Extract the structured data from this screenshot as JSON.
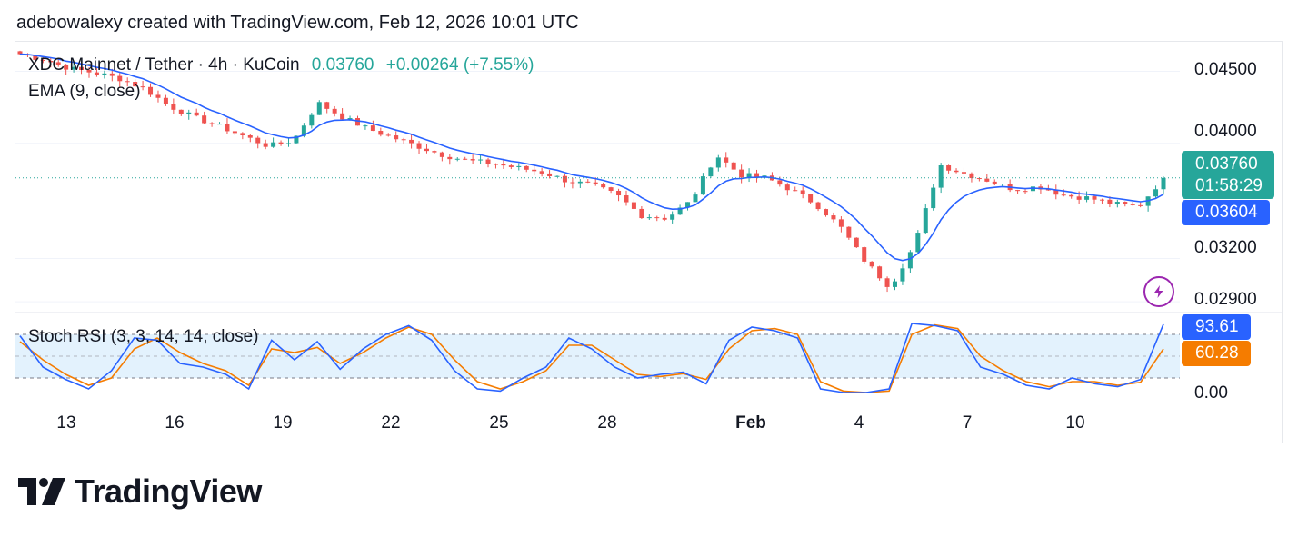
{
  "header": {
    "attribution": "adebowalexy created with TradingView.com, Feb 12, 2026 10:01 UTC"
  },
  "legend": {
    "symbol": "XDC Mainnet / Tether · 4h · KuCoin",
    "last": "0.03760",
    "change": "+0.00264 (+7.55%)",
    "ema": "EMA (9, close)",
    "stoch": "Stoch RSI (3, 3, 14, 14, close)"
  },
  "price_axis": {
    "ticks": [
      "0.04500",
      "0.04000",
      "0.03200",
      "0.02900"
    ]
  },
  "tags": {
    "last_price": "0.03760",
    "countdown": "01:58:29",
    "ema_value": "0.03604",
    "stoch_k": "93.61",
    "stoch_d": "60.28",
    "stoch_zero": "0.00"
  },
  "x_axis": {
    "labels": [
      "13",
      "16",
      "19",
      "22",
      "25",
      "28",
      "Feb",
      "4",
      "7",
      "10"
    ]
  },
  "colors": {
    "up": "#26a69a",
    "down": "#ef5350",
    "ema": "#2962ff",
    "k_line": "#2962ff",
    "d_line": "#f57c00",
    "band": "#e3f2fd"
  },
  "icons": {
    "indicator": "lightning-icon",
    "brand": "tradingview-logo-icon"
  },
  "brand": {
    "name": "TradingView"
  },
  "chart_data": [
    {
      "type": "candlestick",
      "title": "XDC Mainnet / Tether · 4h · KuCoin",
      "x_labels": [
        "13",
        "16",
        "19",
        "22",
        "25",
        "28",
        "Feb",
        "4",
        "7",
        "10"
      ],
      "close_path": [
        0.0462,
        0.0458,
        0.0452,
        0.0449,
        0.0445,
        0.0438,
        0.0426,
        0.0418,
        0.0412,
        0.0405,
        0.0398,
        0.0402,
        0.0428,
        0.0418,
        0.041,
        0.0404,
        0.0398,
        0.0392,
        0.0388,
        0.0386,
        0.0383,
        0.038,
        0.0374,
        0.0371,
        0.0364,
        0.035,
        0.0348,
        0.036,
        0.0392,
        0.0378,
        0.0376,
        0.0368,
        0.0358,
        0.0342,
        0.0318,
        0.03,
        0.033,
        0.0385,
        0.0379,
        0.0374,
        0.0368,
        0.037,
        0.0364,
        0.0362,
        0.0358,
        0.0356,
        0.0376
      ],
      "ema_last": 0.03604,
      "last": 0.0376,
      "ylim": [
        0.0285,
        0.0468
      ]
    },
    {
      "type": "line",
      "title": "Stoch RSI (3, 3, 14, 14, close)",
      "ylim": [
        0,
        100
      ],
      "band": [
        20,
        80
      ],
      "series": [
        {
          "name": "K",
          "values": [
            78,
            35,
            18,
            5,
            30,
            75,
            72,
            40,
            35,
            25,
            5,
            72,
            45,
            70,
            32,
            60,
            80,
            92,
            72,
            30,
            5,
            2,
            20,
            35,
            75,
            60,
            35,
            20,
            25,
            28,
            12,
            72,
            90,
            85,
            75,
            5,
            0,
            0,
            5,
            95,
            92,
            85,
            35,
            25,
            10,
            5,
            20,
            12,
            8,
            18,
            94
          ]
        },
        {
          "name": "D",
          "values": [
            70,
            45,
            25,
            10,
            20,
            60,
            75,
            55,
            40,
            30,
            10,
            60,
            55,
            62,
            40,
            55,
            75,
            90,
            80,
            45,
            15,
            5,
            15,
            30,
            65,
            65,
            45,
            25,
            22,
            26,
            18,
            60,
            85,
            88,
            80,
            15,
            2,
            0,
            2,
            80,
            93,
            88,
            50,
            30,
            15,
            8,
            15,
            15,
            10,
            14,
            60
          ]
        }
      ]
    }
  ]
}
